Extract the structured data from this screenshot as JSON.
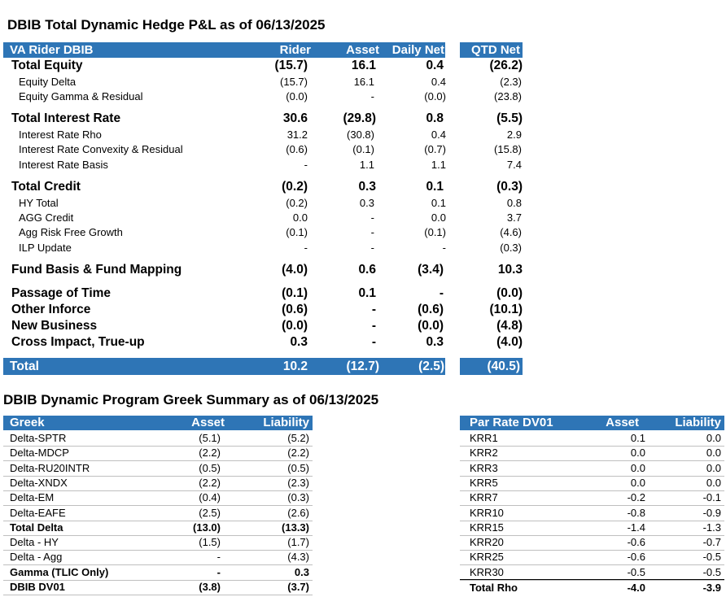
{
  "pnl": {
    "title": "DBIB Total Dynamic Hedge P&L as of 06/13/2025",
    "header": {
      "label": "VA Rider DBIB",
      "rider": "Rider",
      "asset": "Asset",
      "daily": "Daily Net",
      "qtd": "QTD Net"
    },
    "rows": [
      {
        "label": "Total Equity",
        "rider": "(15.7)",
        "asset": "16.1",
        "daily": "0.4",
        "qtd": "(26.2)",
        "bold": true
      },
      {
        "label": "Equity Delta",
        "rider": "(15.7)",
        "asset": "16.1",
        "daily": "0.4",
        "qtd": "(2.3)"
      },
      {
        "label": "Equity Gamma & Residual",
        "rider": "(0.0)",
        "asset": "-",
        "daily": "(0.0)",
        "qtd": "(23.8)"
      },
      {
        "label": "Total Interest Rate",
        "rider": "30.6",
        "asset": "(29.8)",
        "daily": "0.8",
        "qtd": "(5.5)",
        "bold": true
      },
      {
        "label": "Interest Rate Rho",
        "rider": "31.2",
        "asset": "(30.8)",
        "daily": "0.4",
        "qtd": "2.9"
      },
      {
        "label": "Interest Rate Convexity & Residual",
        "rider": "(0.6)",
        "asset": "(0.1)",
        "daily": "(0.7)",
        "qtd": "(15.8)"
      },
      {
        "label": "Interest Rate Basis",
        "rider": "-",
        "asset": "1.1",
        "daily": "1.1",
        "qtd": "7.4"
      },
      {
        "label": "Total Credit",
        "rider": "(0.2)",
        "asset": "0.3",
        "daily": "0.1",
        "qtd": "(0.3)",
        "bold": true
      },
      {
        "label": "HY Total",
        "rider": "(0.2)",
        "asset": "0.3",
        "daily": "0.1",
        "qtd": "0.8"
      },
      {
        "label": "AGG Credit",
        "rider": "0.0",
        "asset": "-",
        "daily": "0.0",
        "qtd": "3.7"
      },
      {
        "label": "Agg Risk Free Growth",
        "rider": "(0.1)",
        "asset": "-",
        "daily": "(0.1)",
        "qtd": "(4.6)"
      },
      {
        "label": "ILP Update",
        "rider": "-",
        "asset": "-",
        "daily": "-",
        "qtd": "(0.3)"
      },
      {
        "label": "Fund Basis & Fund Mapping",
        "rider": "(4.0)",
        "asset": "0.6",
        "daily": "(3.4)",
        "qtd": "10.3",
        "bold": true
      },
      {
        "label": "Passage of Time",
        "rider": "(0.1)",
        "asset": "0.1",
        "daily": "-",
        "qtd": "(0.0)",
        "bold": true
      },
      {
        "label": "Other Inforce",
        "rider": "(0.6)",
        "asset": "-",
        "daily": "(0.6)",
        "qtd": "(10.1)",
        "bold": true
      },
      {
        "label": "New Business",
        "rider": "(0.0)",
        "asset": "-",
        "daily": "(0.0)",
        "qtd": "(4.8)",
        "bold": true
      },
      {
        "label": "Cross Impact, True-up",
        "rider": "0.3",
        "asset": "-",
        "daily": "0.3",
        "qtd": "(4.0)",
        "bold": true
      }
    ],
    "total": {
      "label": "Total",
      "rider": "10.2",
      "asset": "(12.7)",
      "daily": "(2.5)",
      "qtd": "(40.5)"
    }
  },
  "greek": {
    "title": "DBIB Dynamic Program Greek Summary as of 06/13/2025",
    "header": {
      "label": "Greek",
      "asset": "Asset",
      "liability": "Liability"
    },
    "rows": [
      {
        "label": "Delta-SPTR",
        "asset": "(5.1)",
        "liability": "(5.2)"
      },
      {
        "label": "Delta-MDCP",
        "asset": "(2.2)",
        "liability": "(2.2)"
      },
      {
        "label": "Delta-RU20INTR",
        "asset": "(0.5)",
        "liability": "(0.5)"
      },
      {
        "label": "Delta-XNDX",
        "asset": "(2.2)",
        "liability": "(2.3)"
      },
      {
        "label": "Delta-EM",
        "asset": "(0.4)",
        "liability": "(0.3)"
      },
      {
        "label": "Delta-EAFE",
        "asset": "(2.5)",
        "liability": "(2.6)"
      },
      {
        "label": "Total Delta",
        "asset": "(13.0)",
        "liability": "(13.3)",
        "bold": true
      },
      {
        "label": "Delta - HY",
        "asset": "(1.5)",
        "liability": "(1.7)"
      },
      {
        "label": "Delta - Agg",
        "asset": "-",
        "liability": "(4.3)"
      },
      {
        "label": "Gamma (TLIC Only)",
        "asset": "-",
        "liability": "0.3",
        "bold": true
      },
      {
        "label": "DBIB DV01",
        "asset": "(3.8)",
        "liability": "(3.7)",
        "bold": true
      }
    ]
  },
  "dv01": {
    "header": {
      "label": "Par Rate DV01",
      "asset": "Asset",
      "liability": "Liability"
    },
    "rows": [
      {
        "label": "KRR1",
        "asset": "0.1",
        "liability": "0.0"
      },
      {
        "label": "KRR2",
        "asset": "0.0",
        "liability": "0.0"
      },
      {
        "label": "KRR3",
        "asset": "0.0",
        "liability": "0.0"
      },
      {
        "label": "KRR5",
        "asset": "0.0",
        "liability": "0.0"
      },
      {
        "label": "KRR7",
        "asset": "-0.2",
        "liability": "-0.1"
      },
      {
        "label": "KRR10",
        "asset": "-0.8",
        "liability": "-0.9"
      },
      {
        "label": "KRR15",
        "asset": "-1.4",
        "liability": "-1.3"
      },
      {
        "label": "KRR20",
        "asset": "-0.6",
        "liability": "-0.7"
      },
      {
        "label": "KRR25",
        "asset": "-0.6",
        "liability": "-0.5"
      },
      {
        "label": "KRR30",
        "asset": "-0.5",
        "liability": "-0.5"
      }
    ],
    "total": {
      "label": "Total Rho",
      "asset": "-4.0",
      "liability": "-3.9"
    }
  }
}
